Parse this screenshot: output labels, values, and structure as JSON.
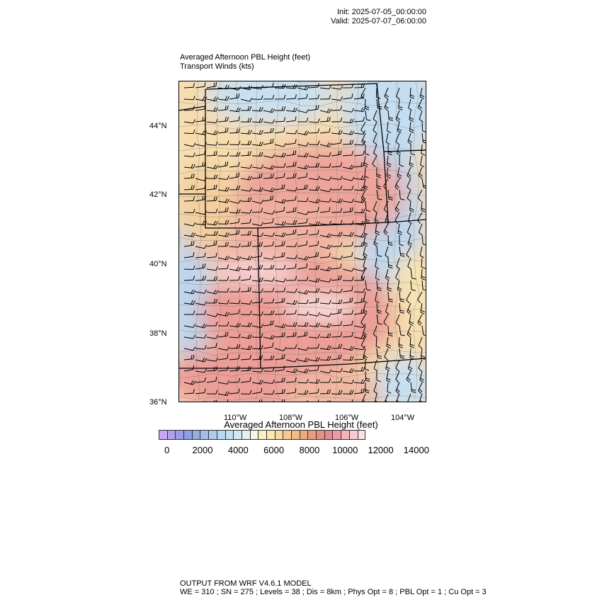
{
  "header": {
    "init": "Init: 2025-07-05_00:00:00",
    "valid": "Valid: 2025-07-07_06:00:00"
  },
  "titles": {
    "line1": "Averaged Afternoon PBL Height   (feet)",
    "line2": "Transport Winds   (kts)"
  },
  "axes": {
    "lat_labels": [
      "44°N",
      "42°N",
      "40°N",
      "38°N",
      "36°N"
    ],
    "lon_labels": [
      "110°W",
      "108°W",
      "106°W",
      "104°W"
    ]
  },
  "colorbar": {
    "title": "Averaged Afternoon PBL Height  (feet)",
    "labels": [
      "0",
      "2000",
      "4000",
      "6000",
      "8000",
      "10000",
      "12000",
      "14000"
    ],
    "colors": [
      "#c7a6f2",
      "#b0a0ee",
      "#9b9ce9",
      "#8f9ee6",
      "#97addf",
      "#a3bde8",
      "#aecbec",
      "#b8d8f0",
      "#c4e0f1",
      "#d3e8f2",
      "#e4f1f3",
      "#f4f6ea",
      "#fcefc4",
      "#fbe6b1",
      "#f8d9a0",
      "#f4cb93",
      "#f0bb87",
      "#ebab80",
      "#e89c80",
      "#e68f84",
      "#e8878c",
      "#ed9aa3",
      "#f4b4be",
      "#f9cad3",
      "#fde0e6"
    ]
  },
  "footer": {
    "line1": "OUTPUT FROM WRF V4.6.1 MODEL",
    "line2": "WE = 310 ; SN = 275 ; Levels = 38 ; Dis = 8km ; Phys Opt = 8 ; PBL Opt = 1 ; Cu Opt = 3"
  }
}
